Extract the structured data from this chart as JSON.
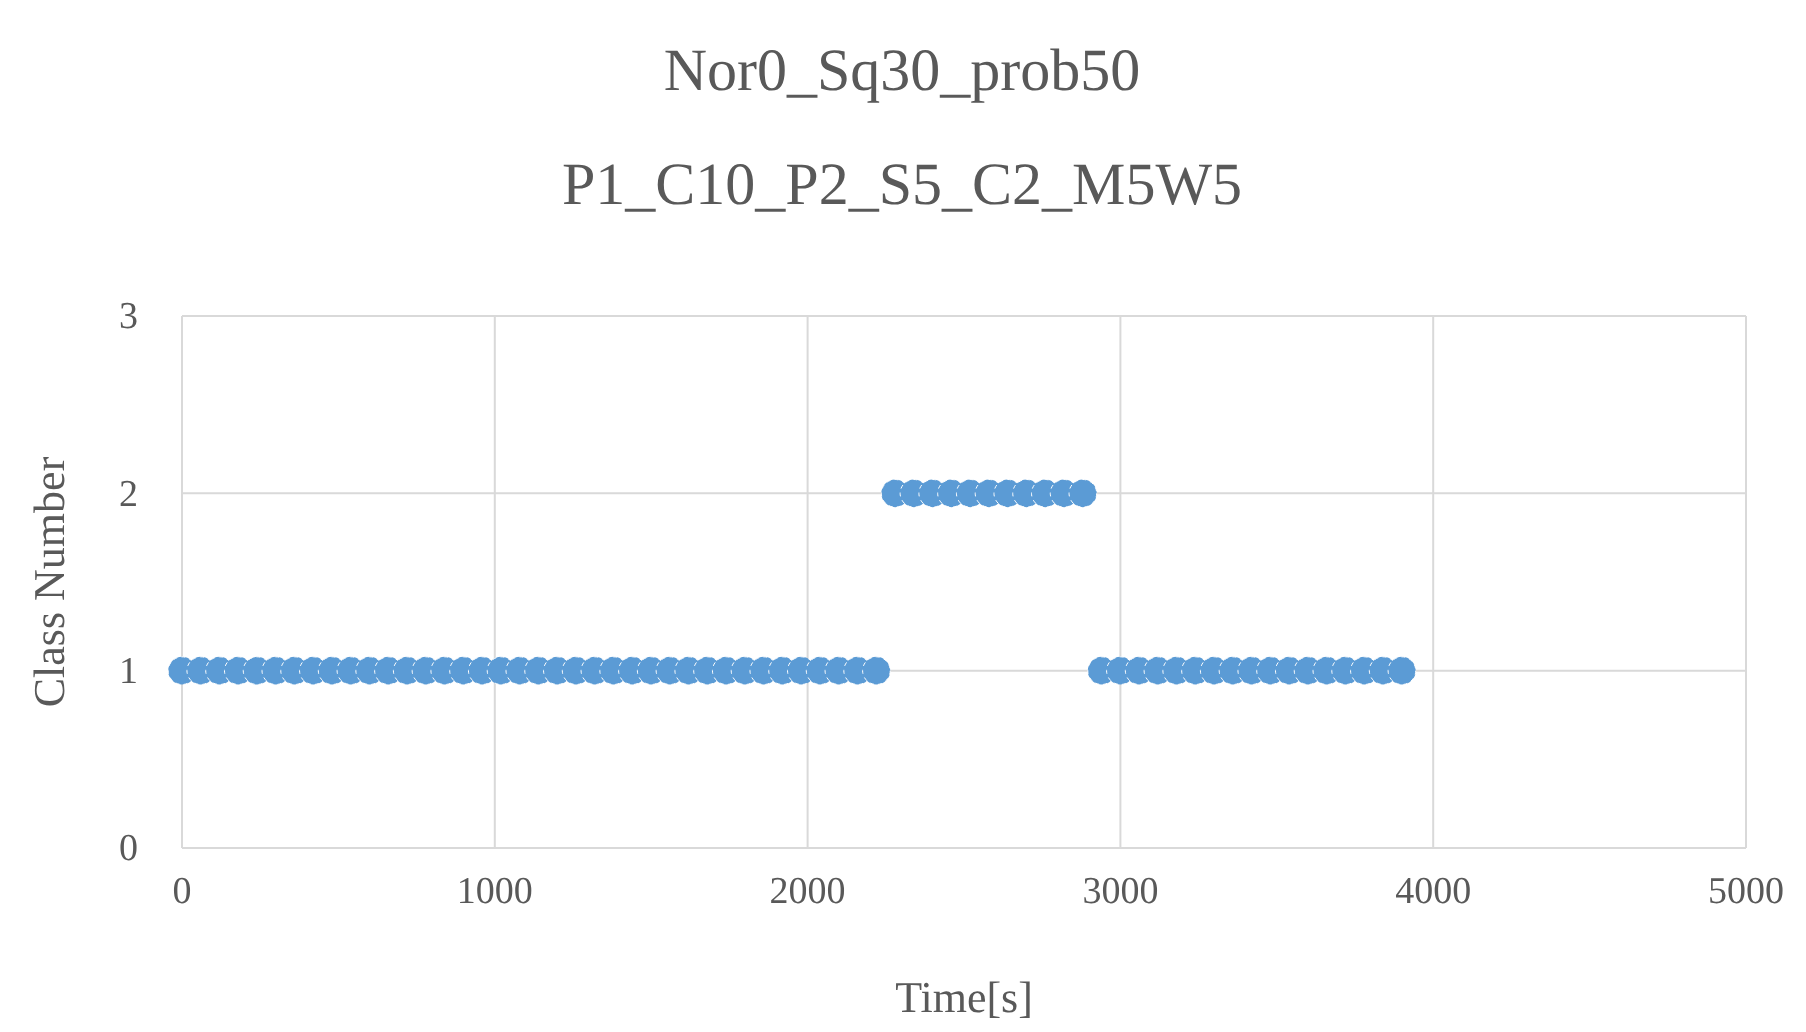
{
  "chart_data": {
    "type": "scatter",
    "title": "Nor0_Sq30_prob50",
    "subtitle": "P1_C10_P2_S5_C2_M5W5",
    "xlabel": "Time[s]",
    "ylabel": "Class Number",
    "x": [
      0,
      60,
      120,
      180,
      240,
      300,
      360,
      420,
      480,
      540,
      600,
      660,
      720,
      780,
      840,
      900,
      960,
      1020,
      1080,
      1140,
      1200,
      1260,
      1320,
      1380,
      1440,
      1500,
      1560,
      1620,
      1680,
      1740,
      1800,
      1860,
      1920,
      1980,
      2040,
      2100,
      2160,
      2220,
      2280,
      2340,
      2400,
      2460,
      2520,
      2580,
      2640,
      2700,
      2760,
      2820,
      2880,
      2940,
      3000,
      3060,
      3120,
      3180,
      3240,
      3300,
      3360,
      3420,
      3480,
      3540,
      3600,
      3660,
      3720,
      3780,
      3840,
      3900
    ],
    "series": [
      {
        "color": "#5b9bd5",
        "values": [
          1,
          1,
          1,
          1,
          1,
          1,
          1,
          1,
          1,
          1,
          1,
          1,
          1,
          1,
          1,
          1,
          1,
          1,
          1,
          1,
          1,
          1,
          1,
          1,
          1,
          1,
          1,
          1,
          1,
          1,
          1,
          1,
          1,
          1,
          1,
          1,
          1,
          1,
          2,
          2,
          2,
          2,
          2,
          2,
          2,
          2,
          2,
          2,
          2,
          1,
          1,
          1,
          1,
          1,
          1,
          1,
          1,
          1,
          1,
          1,
          1,
          1,
          1,
          1,
          1,
          1
        ]
      }
    ],
    "xlim": [
      0,
      5000
    ],
    "xticks": [
      0,
      1000,
      2000,
      3000,
      4000,
      5000
    ],
    "ylim": [
      0,
      3
    ],
    "yticks": [
      0,
      1,
      2,
      3
    ],
    "grid": true,
    "marker": "circle"
  }
}
